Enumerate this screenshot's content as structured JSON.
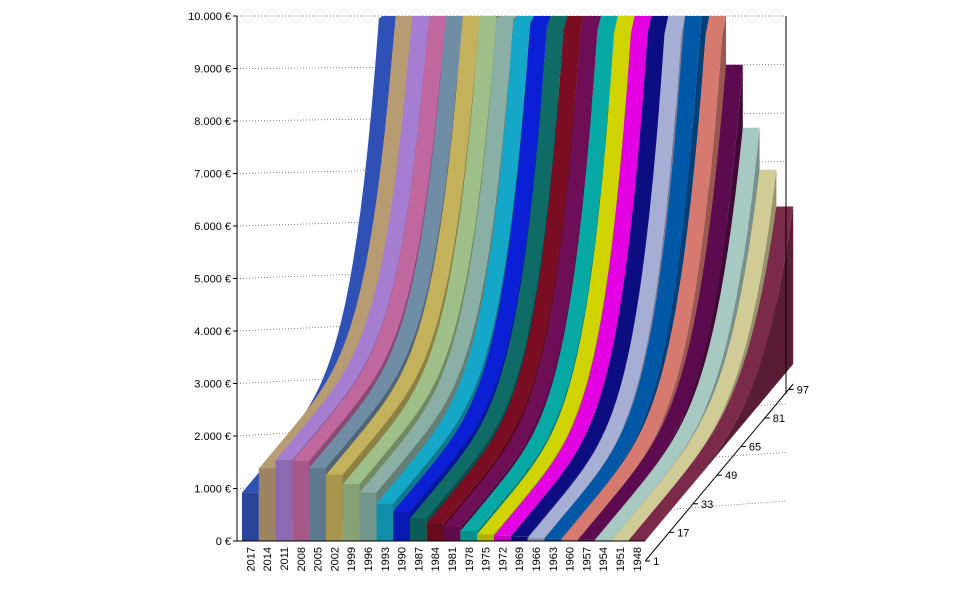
{
  "chart_data": {
    "type": "area",
    "title": "",
    "xlabel": "",
    "ylabel": "",
    "ylim": [
      0,
      10000
    ],
    "y_ticks": [
      "0 €",
      "1.000 €",
      "2.000 €",
      "3.000 €",
      "4.000 €",
      "5.000 €",
      "6.000 €",
      "7.000 €",
      "8.000 €",
      "9.000 €",
      "10.000 €"
    ],
    "categories": [
      "2017",
      "2014",
      "2011",
      "2008",
      "2005",
      "2002",
      "1999",
      "1996",
      "1993",
      "1990",
      "1987",
      "1984",
      "1981",
      "1978",
      "1975",
      "1972",
      "1969",
      "1966",
      "1963",
      "1960",
      "1957",
      "1954",
      "1951",
      "1948"
    ],
    "depth_axis": {
      "ticks": [
        "1",
        "17",
        "33",
        "49",
        "65",
        "81",
        "97"
      ],
      "range": [
        1,
        100
      ]
    },
    "start_values": [
      920,
      1380,
      1540,
      1520,
      1390,
      1260,
      1080,
      920,
      710,
      560,
      430,
      340,
      270,
      190,
      130,
      100,
      80,
      60,
      45,
      35,
      25,
      18,
      12,
      8
    ],
    "end_values": [
      10000,
      10000,
      10000,
      10000,
      10000,
      10000,
      10000,
      10000,
      10000,
      10000,
      10000,
      10000,
      10000,
      10000,
      10000,
      10000,
      10000,
      10000,
      9300,
      7300,
      5700,
      4500,
      3700,
      3000
    ],
    "colors": [
      "#2f50b5",
      "#b79b73",
      "#a57dd1",
      "#c0679f",
      "#6f8ea6",
      "#c3b25b",
      "#9fbf88",
      "#8ab0a6",
      "#14a7c7",
      "#0b1fd4",
      "#0e6b66",
      "#7a0d22",
      "#6d0e56",
      "#06a9a4",
      "#cfd300",
      "#e300e3",
      "#0d0d82",
      "#a6aed4",
      "#0058a7",
      "#d67a6f",
      "#5b0b4e",
      "#a6c9c2",
      "#d1cb96",
      "#7c2a49"
    ]
  }
}
